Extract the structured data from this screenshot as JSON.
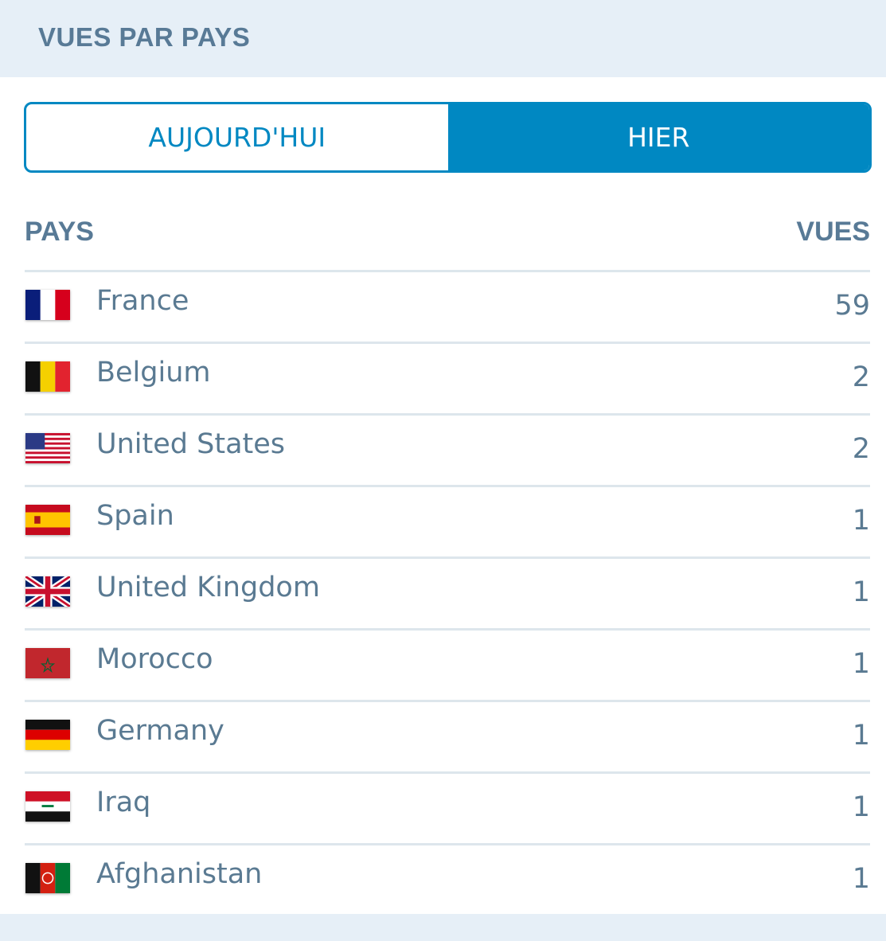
{
  "header": {
    "title": "VUES PAR PAYS"
  },
  "toggle": {
    "options": [
      {
        "label": "AUJOURD'HUI",
        "active": false
      },
      {
        "label": "HIER",
        "active": true
      }
    ],
    "accent": "#0088c2"
  },
  "table": {
    "columns": {
      "country": "PAYS",
      "views": "VUES"
    },
    "rows": [
      {
        "flag": "france-flag",
        "country": "France",
        "views": "59"
      },
      {
        "flag": "belgium-flag",
        "country": "Belgium",
        "views": "2"
      },
      {
        "flag": "united-states-flag",
        "country": "United States",
        "views": "2"
      },
      {
        "flag": "spain-flag",
        "country": "Spain",
        "views": "1"
      },
      {
        "flag": "united-kingdom-flag",
        "country": "United Kingdom",
        "views": "1"
      },
      {
        "flag": "morocco-flag",
        "country": "Morocco",
        "views": "1"
      },
      {
        "flag": "germany-flag",
        "country": "Germany",
        "views": "1"
      },
      {
        "flag": "iraq-flag",
        "country": "Iraq",
        "views": "1"
      },
      {
        "flag": "afghanistan-flag",
        "country": "Afghanistan",
        "views": "1"
      }
    ]
  }
}
